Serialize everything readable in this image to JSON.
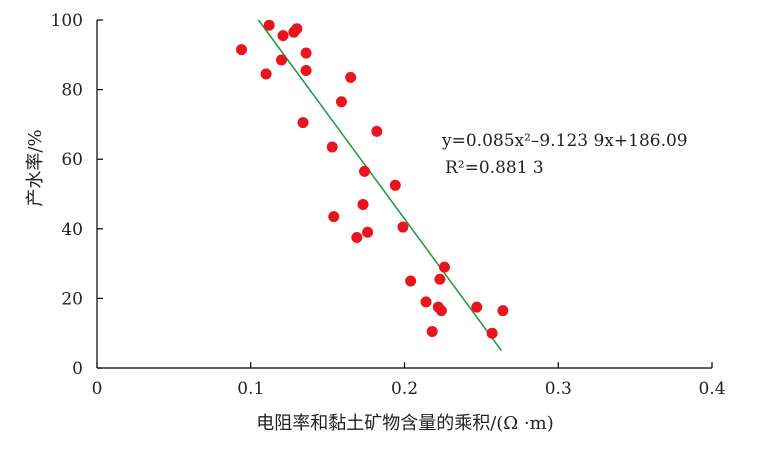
{
  "chart_data": {
    "type": "scatter",
    "xlabel": "电阻率和黏土矿物含量的乘积/(Ω ·m)",
    "ylabel": "产水率/%",
    "xlim": [
      0,
      0.4
    ],
    "ylim": [
      0,
      100
    ],
    "xticks": [
      "0",
      "0.1",
      "0.2",
      "0.3",
      "0.4"
    ],
    "yticks": [
      "0",
      "20",
      "40",
      "60",
      "80",
      "100"
    ],
    "point_color": "#e8141e",
    "fit_color": "#1a9a3a",
    "points": [
      {
        "x": 0.094,
        "y": 91.5
      },
      {
        "x": 0.11,
        "y": 84.5
      },
      {
        "x": 0.112,
        "y": 98.5
      },
      {
        "x": 0.12,
        "y": 88.5
      },
      {
        "x": 0.121,
        "y": 95.5
      },
      {
        "x": 0.128,
        "y": 96.5
      },
      {
        "x": 0.13,
        "y": 97.5
      },
      {
        "x": 0.134,
        "y": 70.5
      },
      {
        "x": 0.136,
        "y": 90.5
      },
      {
        "x": 0.136,
        "y": 85.5
      },
      {
        "x": 0.153,
        "y": 63.5
      },
      {
        "x": 0.154,
        "y": 43.5
      },
      {
        "x": 0.159,
        "y": 76.5
      },
      {
        "x": 0.165,
        "y": 83.5
      },
      {
        "x": 0.169,
        "y": 37.5
      },
      {
        "x": 0.173,
        "y": 47.0
      },
      {
        "x": 0.174,
        "y": 56.5
      },
      {
        "x": 0.176,
        "y": 39.0
      },
      {
        "x": 0.182,
        "y": 68.0
      },
      {
        "x": 0.194,
        "y": 52.5
      },
      {
        "x": 0.199,
        "y": 40.5
      },
      {
        "x": 0.204,
        "y": 25.0
      },
      {
        "x": 0.214,
        "y": 19.0
      },
      {
        "x": 0.218,
        "y": 10.5
      },
      {
        "x": 0.222,
        "y": 17.5
      },
      {
        "x": 0.224,
        "y": 16.5
      },
      {
        "x": 0.223,
        "y": 25.5
      },
      {
        "x": 0.226,
        "y": 29.0
      },
      {
        "x": 0.247,
        "y": 17.5
      },
      {
        "x": 0.257,
        "y": 10.0
      },
      {
        "x": 0.264,
        "y": 16.5
      }
    ],
    "fit": {
      "x_range": [
        0.105,
        0.263
      ],
      "y_range": [
        100,
        5
      ],
      "equation": "y=0.085x²–9.123 9x+186.09",
      "r2": "R²=0.881 3"
    }
  }
}
